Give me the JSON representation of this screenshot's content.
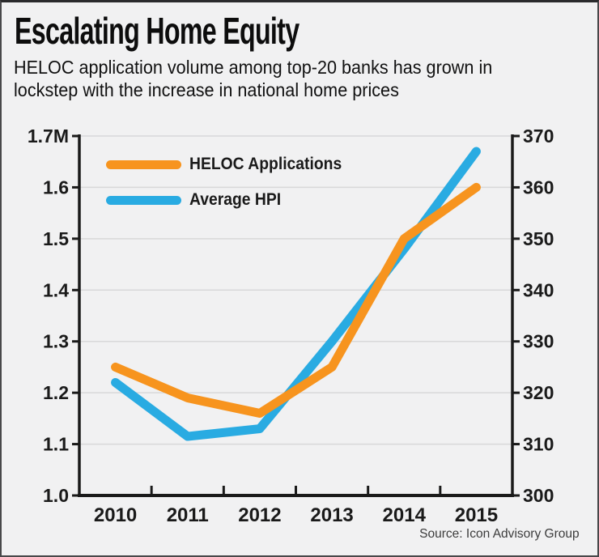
{
  "header": {
    "title": "Escalating Home Equity",
    "subtitle_lines": [
      "HELOC application volume among top-20 banks has grown in",
      "lockstep with the increase in national home prices"
    ]
  },
  "source": {
    "text": "Source: Icon Advisory Group"
  },
  "colors": {
    "heloc_orange": "#F7941E",
    "hpi_blue": "#29ABE2",
    "axis": "#1a1a1a",
    "gridline": "#d8d8d9",
    "background": "#f1f1f2"
  },
  "chart_data": {
    "type": "line",
    "title": "Escalating Home Equity",
    "categories": [
      "2010",
      "2011",
      "2012",
      "2013",
      "2014",
      "2015"
    ],
    "series": [
      {
        "name": "HELOC Applications",
        "axis": "left",
        "color": "#F7941E",
        "values": [
          1.25,
          1.19,
          1.16,
          1.25,
          1.5,
          1.6
        ]
      },
      {
        "name": "Average HPI",
        "axis": "right",
        "color": "#29ABE2",
        "values": [
          322,
          311.5,
          313,
          330,
          348,
          367
        ]
      }
    ],
    "left_axis": {
      "tick_labels": [
        "1.7M",
        "1.6",
        "1.5",
        "1.4",
        "1.3",
        "1.2",
        "1.1",
        "1.0"
      ],
      "min": 1.0,
      "max": 1.7
    },
    "right_axis": {
      "tick_labels": [
        "370",
        "360",
        "350",
        "340",
        "330",
        "320",
        "310",
        "300"
      ],
      "min": 300,
      "max": 370
    },
    "grid": true,
    "legend_position": "top-left-inside"
  }
}
